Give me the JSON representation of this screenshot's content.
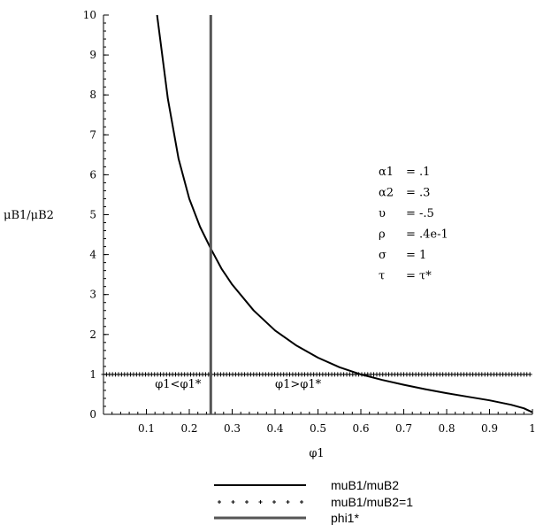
{
  "chart_data": {
    "type": "line",
    "xlabel": "φ1",
    "ylabel": "μB1/μB2",
    "xlim": [
      0,
      1
    ],
    "ylim": [
      0,
      10
    ],
    "xticks": [
      0.1,
      0.2,
      0.3,
      0.4,
      0.5,
      0.6,
      0.7,
      0.8,
      0.9,
      1
    ],
    "xtick_labels": [
      "0.1",
      "0.2",
      "0.3",
      "0.4",
      "0.5",
      "0.6",
      "0.7",
      "0.8",
      "0.9",
      "1"
    ],
    "yticks": [
      0,
      1,
      2,
      3,
      4,
      5,
      6,
      7,
      8,
      9,
      10
    ],
    "ytick_labels": [
      "0",
      "1",
      "2",
      "3",
      "4",
      "5",
      "6",
      "7",
      "8",
      "9",
      "10"
    ],
    "grid": false,
    "legend_position": "bottom",
    "series": [
      {
        "name": "muB1/muB2",
        "style": "solid",
        "color": "#000000",
        "x": [
          0.125,
          0.15,
          0.175,
          0.2,
          0.225,
          0.25,
          0.275,
          0.3,
          0.35,
          0.4,
          0.45,
          0.5,
          0.55,
          0.6,
          0.65,
          0.7,
          0.75,
          0.8,
          0.85,
          0.9,
          0.95,
          0.98,
          1.0
        ],
        "y": [
          10.0,
          7.9,
          6.4,
          5.4,
          4.7,
          4.15,
          3.65,
          3.25,
          2.6,
          2.1,
          1.72,
          1.42,
          1.18,
          1.0,
          0.86,
          0.74,
          0.63,
          0.53,
          0.44,
          0.35,
          0.24,
          0.15,
          0.05
        ]
      },
      {
        "name": "muB1/muB2=1",
        "style": "dotted",
        "color": "#000000",
        "x": [
          0,
          1
        ],
        "y": [
          1,
          1
        ]
      },
      {
        "name": "phi1*",
        "style": "solid-thick",
        "color": "#555555",
        "x": [
          0.25,
          0.25
        ],
        "y": [
          0,
          10
        ]
      }
    ],
    "annotations": [
      {
        "text": "φ1<φ1*",
        "x": 0.12,
        "y": 0.75
      },
      {
        "text": "φ1>φ1*",
        "x": 0.4,
        "y": 0.75
      }
    ],
    "parameters": [
      {
        "symbol": "α1",
        "value": "= .1"
      },
      {
        "symbol": "α2",
        "value": "= .3"
      },
      {
        "symbol": "υ",
        "value": "= -.5"
      },
      {
        "symbol": "ρ",
        "value": "= .4e-1"
      },
      {
        "symbol": "σ",
        "value": "= 1"
      },
      {
        "symbol": "τ",
        "value": "= τ*"
      }
    ]
  }
}
